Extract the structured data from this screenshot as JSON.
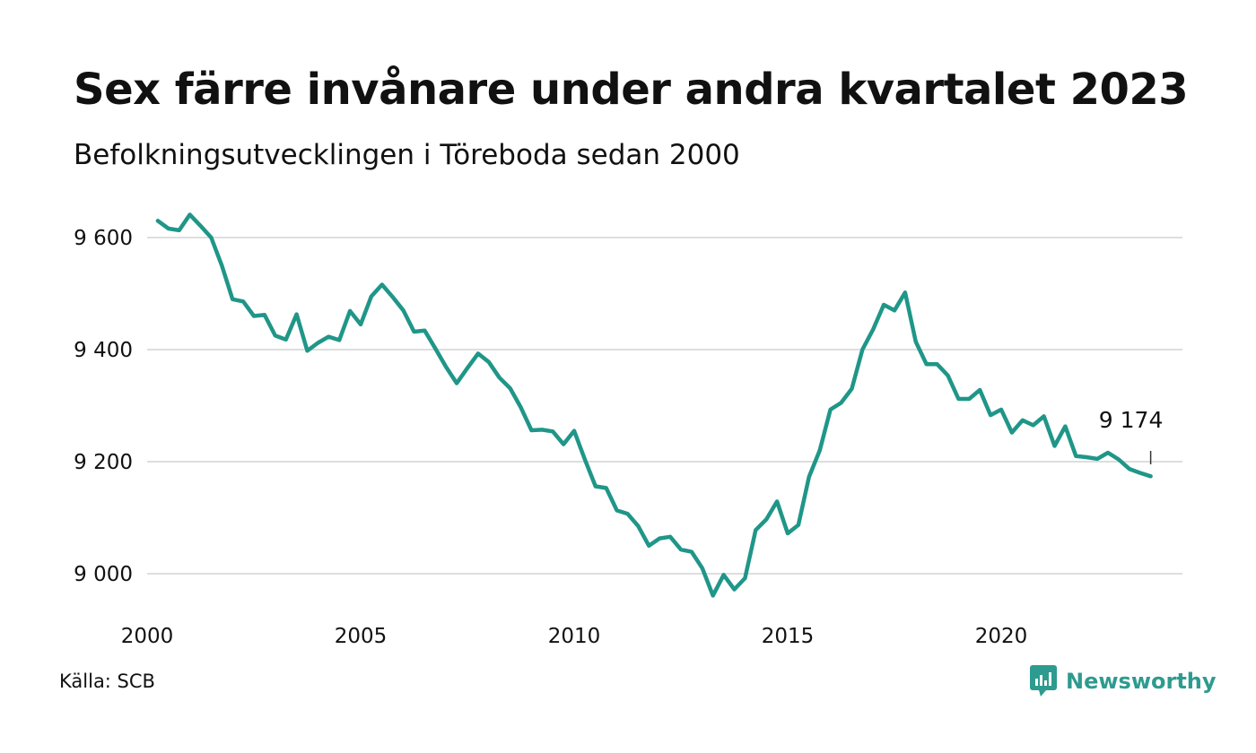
{
  "header": {
    "title": "Sex färre invånare under andra kvartalet 2023",
    "subtitle": "Befolkningsutvecklingen i Töreboda sedan 2000"
  },
  "footer": {
    "source": "Källa: SCB",
    "brand": "Newsworthy",
    "brand_color": "#2d9b8f"
  },
  "chart_data": {
    "type": "line",
    "title": "Sex färre invånare under andra kvartalet 2023",
    "subtitle": "Befolkningsutvecklingen i Töreboda sedan 2000",
    "xlabel": "",
    "ylabel": "",
    "x_ticks": [
      "2000",
      "2005",
      "2010",
      "2015",
      "2020"
    ],
    "y_ticks": [
      "9 000",
      "9 200",
      "9 400",
      "9 600"
    ],
    "xlim": [
      2000,
      2024.25
    ],
    "ylim": [
      8930,
      9650
    ],
    "grid": "horizontal",
    "line_color": "#1f9688",
    "last_value_label": "9 174",
    "series": [
      {
        "x": [
          2000.25,
          2000.5,
          2000.75,
          2001.0,
          2001.25,
          2001.5,
          2001.75,
          2002.0,
          2002.25,
          2002.5,
          2002.75,
          2003.0,
          2003.25,
          2003.5,
          2003.75,
          2004.0,
          2004.25,
          2004.5,
          2004.75,
          2005.0,
          2005.25,
          2005.5,
          2005.75,
          2006.0,
          2006.25,
          2006.5,
          2006.75,
          2007.0,
          2007.25,
          2007.5,
          2007.75,
          2008.0,
          2008.25,
          2008.5,
          2008.75,
          2009.0,
          2009.25,
          2009.5,
          2009.75,
          2010.0,
          2010.25,
          2010.5,
          2010.75,
          2011.0,
          2011.25,
          2011.5,
          2011.75,
          2012.0,
          2012.25,
          2012.5,
          2012.75,
          2013.0,
          2013.25,
          2013.5,
          2013.75,
          2014.0,
          2014.25,
          2014.5,
          2014.75,
          2015.0,
          2015.25,
          2015.5,
          2015.75,
          2016.0,
          2016.25,
          2016.5,
          2016.75,
          2017.0,
          2017.25,
          2017.5,
          2017.75,
          2018.0,
          2018.25,
          2018.5,
          2018.75,
          2019.0,
          2019.25,
          2019.5,
          2019.75,
          2020.0,
          2020.25,
          2020.5,
          2020.75,
          2021.0,
          2021.25,
          2021.5,
          2021.75,
          2022.0,
          2022.25,
          2022.5,
          2022.75,
          2023.0,
          2023.25,
          2023.5
        ],
        "values": [
          9630,
          9616,
          9613,
          9641,
          9621,
          9600,
          9550,
          9490,
          9486,
          9460,
          9462,
          9425,
          9418,
          9463,
          9398,
          9412,
          9423,
          9417,
          9469,
          9445,
          9495,
          9516,
          9494,
          9470,
          9432,
          9434,
          9402,
          9369,
          9340,
          9367,
          9393,
          9378,
          9350,
          9331,
          9297,
          9256,
          9257,
          9254,
          9231,
          9255,
          9204,
          9156,
          9153,
          9113,
          9107,
          9085,
          9050,
          9063,
          9066,
          9043,
          9039,
          9010,
          8961,
          8998,
          8972,
          8992,
          9078,
          9097,
          9129,
          9072,
          9087,
          9173,
          9220,
          9293,
          9305,
          9330,
          9400,
          9436,
          9480,
          9470,
          9502,
          9414,
          9374,
          9374,
          9354,
          9312,
          9312,
          9328,
          9283,
          9293,
          9252,
          9274,
          9265,
          9281,
          9228,
          9263,
          9210,
          9208,
          9205,
          9216,
          9204,
          9187,
          9180,
          9174
        ]
      }
    ]
  }
}
